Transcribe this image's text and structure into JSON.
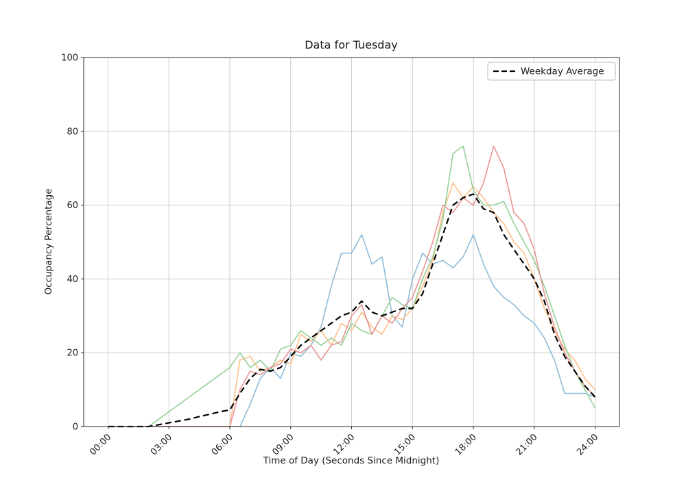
{
  "window": {
    "background": "#ffffff"
  },
  "chart_data": {
    "type": "line",
    "title": "Data for Tuesday",
    "xlabel": "Time of Day (Seconds Since Midnight)",
    "ylabel": "Occupancy Percentage",
    "ylim": [
      0,
      100
    ],
    "xlim_hours": [
      -1.2,
      25.2
    ],
    "grid": true,
    "grid_color": "#cccccc",
    "spine_color": "#262626",
    "yticks": [
      0,
      20,
      40,
      60,
      80,
      100
    ],
    "xticks": {
      "hours": [
        0,
        3,
        6,
        9,
        12,
        15,
        18,
        21,
        24
      ],
      "labels": [
        "00:00",
        "03:00",
        "06:00",
        "09:00",
        "12:00",
        "15:00",
        "18:00",
        "21:00",
        "24:00"
      ]
    },
    "legend": {
      "position": "upper right",
      "label": "Weekday Average"
    },
    "x_hours": [
      0,
      0.5,
      1,
      1.5,
      2,
      2.5,
      3,
      3.5,
      4,
      4.5,
      5,
      5.5,
      6,
      6.5,
      7,
      7.5,
      8,
      8.5,
      9,
      9.5,
      10,
      10.5,
      11,
      11.5,
      12,
      12.5,
      13,
      13.5,
      14,
      14.5,
      15,
      15.5,
      16,
      16.5,
      17,
      17.5,
      18,
      18.5,
      19,
      19.5,
      20,
      20.5,
      21,
      21.5,
      22,
      22.5,
      23,
      23.5,
      24
    ],
    "series": [
      {
        "id": "day-line-blue",
        "color": "#8fbbd9",
        "width": 1.6,
        "dashed": false,
        "values": [
          0,
          0,
          0,
          0,
          0,
          0,
          0,
          0,
          0,
          0,
          0,
          0,
          0,
          0,
          6,
          13,
          16,
          13,
          20,
          19,
          22,
          27,
          38,
          47,
          47,
          52,
          44,
          46,
          30,
          27,
          40,
          47,
          44,
          45,
          43,
          46,
          52,
          44,
          38,
          35,
          33,
          30,
          28,
          24,
          18,
          9,
          9,
          9,
          8
        ]
      },
      {
        "id": "day-line-orange",
        "color": "#ffbf87",
        "width": 1.6,
        "dashed": false,
        "values": [
          0,
          0,
          0,
          0,
          0,
          0,
          0,
          0,
          0,
          0,
          0,
          0,
          0,
          18,
          19,
          15,
          16,
          18,
          17,
          25,
          23,
          26,
          22,
          28,
          26,
          31,
          27,
          25,
          30,
          29,
          32,
          38,
          45,
          58,
          66,
          62,
          65,
          62,
          58,
          55,
          50,
          47,
          40,
          32,
          26,
          21,
          18,
          13,
          10
        ]
      },
      {
        "id": "day-line-green",
        "color": "#95cf95",
        "width": 1.6,
        "dashed": false,
        "values": [
          0,
          0,
          0,
          0,
          0,
          2,
          4,
          6,
          8,
          10,
          12,
          14,
          16,
          20,
          16,
          18,
          15,
          21,
          22,
          26,
          24,
          22,
          24,
          22,
          28,
          26,
          25,
          30,
          35,
          33,
          32,
          40,
          46,
          56,
          74,
          76,
          64,
          60,
          60,
          61,
          55,
          50,
          45,
          38,
          30,
          22,
          15,
          10,
          5
        ]
      },
      {
        "id": "day-line-red",
        "color": "#ea9393",
        "width": 1.6,
        "dashed": false,
        "values": [
          0,
          0,
          0,
          0,
          0,
          0,
          0,
          0,
          0,
          0,
          0,
          0,
          0,
          10,
          15,
          14,
          16,
          17,
          21,
          20,
          22,
          18,
          22,
          23,
          30,
          33,
          25,
          30,
          28,
          32,
          35,
          42,
          50,
          60,
          58,
          62,
          60,
          66,
          76,
          70,
          58,
          55,
          48,
          36,
          27,
          20,
          15,
          11,
          8
        ]
      },
      {
        "id": "weekday-average-line",
        "label": "Weekday Average",
        "color": "#000000",
        "width": 2.2,
        "dashed": true,
        "values": [
          0,
          0,
          0,
          0,
          0,
          0.5,
          1,
          1.5,
          2,
          2.7,
          3.3,
          4,
          4.5,
          9,
          13,
          15.5,
          15,
          16,
          19,
          22,
          24,
          26,
          28,
          30,
          31,
          34,
          31,
          30,
          31,
          32,
          32,
          36,
          44,
          52,
          60,
          62,
          63,
          59,
          58,
          52,
          48,
          44,
          40,
          34,
          25,
          19,
          15,
          11,
          8
        ]
      }
    ]
  }
}
